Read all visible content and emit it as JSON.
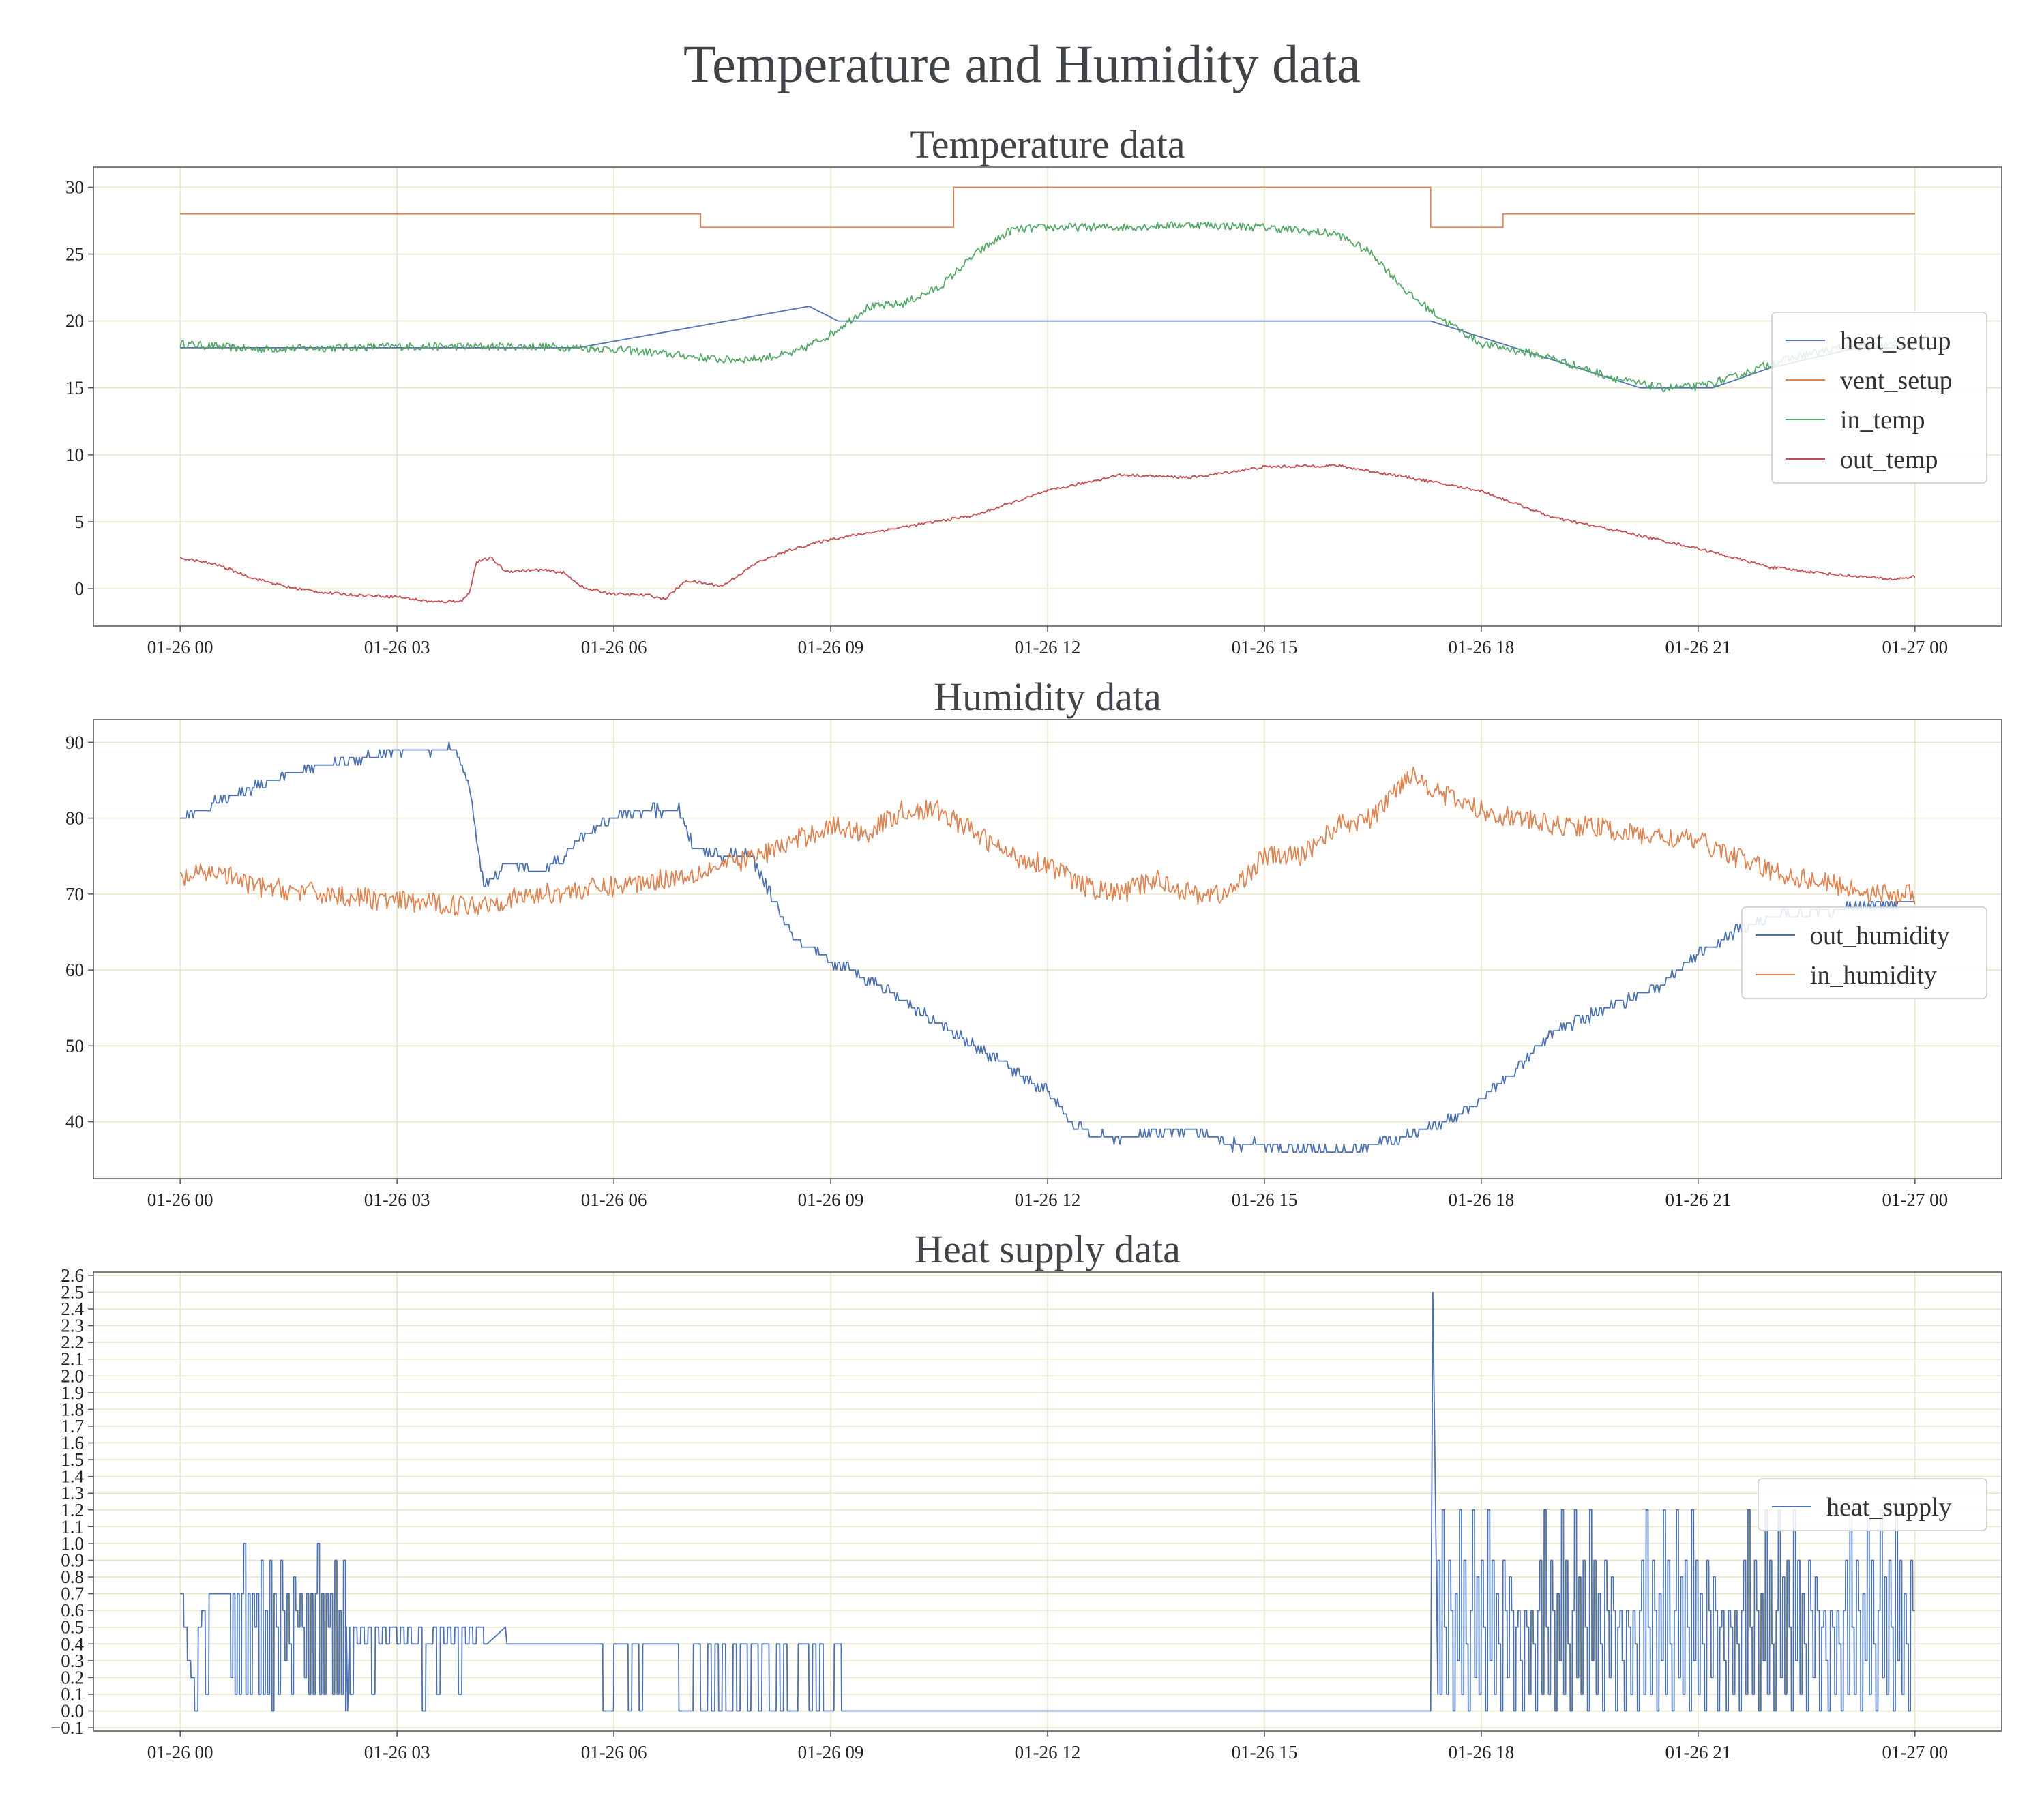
{
  "suptitle": "Temperature and Humidity data",
  "colors": {
    "blue": "#4c72b0",
    "orange": "#dd8452",
    "green": "#55a868",
    "red": "#c44e52",
    "grid": "#e6e6c8",
    "axes": "#555555"
  },
  "chart_data": [
    {
      "type": "line",
      "title": "Temperature data",
      "xlabel": "",
      "ylabel": "",
      "x_ticks": [
        "01-26 00",
        "01-26 03",
        "01-26 06",
        "01-26 09",
        "01-26 12",
        "01-26 15",
        "01-26 18",
        "01-26 21",
        "01-27 00"
      ],
      "x_range_hours": [
        -1.2,
        25.2
      ],
      "ylim": [
        -2.8,
        31.5
      ],
      "y_ticks": [
        0,
        5,
        10,
        15,
        20,
        25,
        30
      ],
      "grid": true,
      "legend": "center-right",
      "series": [
        {
          "name": "heat_setup",
          "color": "#4c72b0",
          "points": [
            [
              0,
              18
            ],
            [
              5.5,
              18
            ],
            [
              8.7,
              21.1
            ],
            [
              9.1,
              20
            ],
            [
              17.3,
              20
            ],
            [
              20.2,
              15
            ],
            [
              21.2,
              15
            ],
            [
              22,
              16.5
            ],
            [
              23.2,
              18
            ],
            [
              24,
              18
            ]
          ]
        },
        {
          "name": "vent_setup",
          "color": "#dd8452",
          "points": [
            [
              0,
              28
            ],
            [
              7.2,
              28
            ],
            [
              7.2,
              27
            ],
            [
              10.7,
              27
            ],
            [
              10.7,
              30
            ],
            [
              17.3,
              30
            ],
            [
              17.3,
              27
            ],
            [
              18.3,
              27
            ],
            [
              18.3,
              28
            ],
            [
              24,
              28
            ]
          ]
        },
        {
          "name": "in_temp",
          "color": "#55a868",
          "noise": 0.3,
          "points": [
            [
              0,
              18.3
            ],
            [
              1,
              17.9
            ],
            [
              2,
              18
            ],
            [
              3,
              18.1
            ],
            [
              4,
              18.1
            ],
            [
              5,
              18.1
            ],
            [
              6,
              17.9
            ],
            [
              7,
              17.4
            ],
            [
              7.5,
              17.1
            ],
            [
              8,
              17.2
            ],
            [
              8.5,
              17.6
            ],
            [
              9,
              19
            ],
            [
              9.5,
              21
            ],
            [
              10,
              21.3
            ],
            [
              10.5,
              22.5
            ],
            [
              11,
              25
            ],
            [
              11.5,
              26.8
            ],
            [
              12,
              27
            ],
            [
              13,
              27
            ],
            [
              14,
              27.2
            ],
            [
              15,
              27
            ],
            [
              16,
              26.5
            ],
            [
              16.5,
              25
            ],
            [
              17,
              22
            ],
            [
              17.5,
              20
            ],
            [
              18,
              18.3
            ],
            [
              18.5,
              17.8
            ],
            [
              19,
              17.2
            ],
            [
              19.5,
              16.3
            ],
            [
              20,
              15.5
            ],
            [
              20.5,
              15
            ],
            [
              21,
              15.1
            ],
            [
              21.5,
              15.8
            ],
            [
              22,
              16.8
            ],
            [
              22.5,
              17.5
            ],
            [
              23,
              18
            ],
            [
              24,
              18.3
            ]
          ]
        },
        {
          "name": "out_temp",
          "color": "#c44e52",
          "noise": 0.1,
          "points": [
            [
              0,
              2.3
            ],
            [
              0.5,
              1.8
            ],
            [
              1,
              0.8
            ],
            [
              1.5,
              0.1
            ],
            [
              2,
              -0.3
            ],
            [
              2.5,
              -0.5
            ],
            [
              3,
              -0.6
            ],
            [
              3.5,
              -1
            ],
            [
              3.9,
              -0.9
            ],
            [
              4,
              -0.3
            ],
            [
              4.1,
              2
            ],
            [
              4.3,
              2.3
            ],
            [
              4.5,
              1.3
            ],
            [
              5,
              1.4
            ],
            [
              5.3,
              1.2
            ],
            [
              5.6,
              0
            ],
            [
              6,
              -0.4
            ],
            [
              6.5,
              -0.5
            ],
            [
              6.7,
              -0.8
            ],
            [
              7,
              0.6
            ],
            [
              7.5,
              0.2
            ],
            [
              8,
              2
            ],
            [
              8.5,
              3
            ],
            [
              9,
              3.7
            ],
            [
              10,
              4.6
            ],
            [
              11,
              5.5
            ],
            [
              12,
              7.3
            ],
            [
              13,
              8.5
            ],
            [
              14,
              8.3
            ],
            [
              15,
              9.1
            ],
            [
              16,
              9.2
            ],
            [
              17,
              8.3
            ],
            [
              18,
              7.3
            ],
            [
              19,
              5.3
            ],
            [
              20,
              4.2
            ],
            [
              21,
              3
            ],
            [
              22,
              1.6
            ],
            [
              23,
              1
            ],
            [
              23.7,
              0.7
            ],
            [
              24,
              0.9
            ]
          ]
        }
      ]
    },
    {
      "type": "line",
      "title": "Humidity data",
      "xlabel": "",
      "ylabel": "",
      "x_ticks": [
        "01-26 00",
        "01-26 03",
        "01-26 06",
        "01-26 09",
        "01-26 12",
        "01-26 15",
        "01-26 18",
        "01-26 21",
        "01-27 00"
      ],
      "x_range_hours": [
        -1.2,
        25.2
      ],
      "ylim": [
        32.5,
        93
      ],
      "y_ticks": [
        40,
        50,
        60,
        70,
        80,
        90
      ],
      "grid": true,
      "legend": "center-right",
      "series": [
        {
          "name": "out_humidity",
          "color": "#4c72b0",
          "step": 1,
          "noise": 0.6,
          "points": [
            [
              0,
              80
            ],
            [
              0.5,
              82
            ],
            [
              1,
              84
            ],
            [
              1.5,
              86
            ],
            [
              2,
              87
            ],
            [
              2.5,
              88
            ],
            [
              3,
              89
            ],
            [
              3.5,
              88.5
            ],
            [
              3.8,
              89.5
            ],
            [
              4,
              84
            ],
            [
              4.2,
              71
            ],
            [
              4.5,
              74
            ],
            [
              5,
              73
            ],
            [
              5.3,
              75
            ],
            [
              5.6,
              78
            ],
            [
              6,
              80
            ],
            [
              6.5,
              81
            ],
            [
              6.9,
              81
            ],
            [
              7.1,
              76
            ],
            [
              7.5,
              75
            ],
            [
              7.9,
              75
            ],
            [
              8,
              73
            ],
            [
              8.5,
              64
            ],
            [
              9,
              61
            ],
            [
              9.5,
              59
            ],
            [
              10,
              56
            ],
            [
              10.5,
              53
            ],
            [
              11,
              50
            ],
            [
              11.5,
              47
            ],
            [
              12,
              44
            ],
            [
              12.3,
              40
            ],
            [
              12.7,
              38
            ],
            [
              13,
              38
            ],
            [
              13.5,
              38.5
            ],
            [
              14,
              39
            ],
            [
              14.5,
              37
            ],
            [
              15,
              37
            ],
            [
              15.5,
              36.5
            ],
            [
              16,
              36
            ],
            [
              16.5,
              37
            ],
            [
              17,
              38
            ],
            [
              17.5,
              40
            ],
            [
              18,
              43
            ],
            [
              18.5,
              47
            ],
            [
              19,
              52
            ],
            [
              19.5,
              54
            ],
            [
              20,
              56
            ],
            [
              20.5,
              58
            ],
            [
              21,
              62
            ],
            [
              21.5,
              65
            ],
            [
              22,
              67
            ],
            [
              23,
              68
            ],
            [
              23.8,
              69
            ],
            [
              24,
              69
            ]
          ]
        },
        {
          "name": "in_humidity",
          "color": "#dd8452",
          "noise": 1.4,
          "points": [
            [
              0,
              72
            ],
            [
              0.5,
              73
            ],
            [
              1,
              71
            ],
            [
              2,
              70
            ],
            [
              3,
              69
            ],
            [
              4,
              68.5
            ],
            [
              5,
              70
            ],
            [
              6,
              71
            ],
            [
              7,
              72.5
            ],
            [
              8,
              75
            ],
            [
              9,
              79
            ],
            [
              9.5,
              78
            ],
            [
              10,
              81
            ],
            [
              10.5,
              81
            ],
            [
              11,
              78
            ],
            [
              11.5,
              75
            ],
            [
              12,
              74
            ],
            [
              12.5,
              71
            ],
            [
              13,
              70
            ],
            [
              13.5,
              72
            ],
            [
              14,
              70
            ],
            [
              14.5,
              70
            ],
            [
              15,
              75
            ],
            [
              15.5,
              75
            ],
            [
              16,
              79
            ],
            [
              16.5,
              80
            ],
            [
              17,
              86
            ],
            [
              17.5,
              83
            ],
            [
              18,
              81
            ],
            [
              18.5,
              80
            ],
            [
              19,
              79
            ],
            [
              19.5,
              79
            ],
            [
              20,
              78
            ],
            [
              21,
              77
            ],
            [
              22,
              73
            ],
            [
              23,
              71
            ],
            [
              23.5,
              70
            ],
            [
              24,
              70
            ]
          ]
        }
      ]
    },
    {
      "type": "line",
      "title": "Heat supply data",
      "xlabel": "",
      "ylabel": "",
      "x_ticks": [
        "01-26 00",
        "01-26 03",
        "01-26 06",
        "01-26 09",
        "01-26 12",
        "01-26 15",
        "01-26 18",
        "01-26 21",
        "01-27 00"
      ],
      "x_range_hours": [
        -1.2,
        25.2
      ],
      "ylim": [
        -0.12,
        2.62
      ],
      "y_ticks": [
        -0.1,
        0.0,
        0.1,
        0.2,
        0.3,
        0.4,
        0.5,
        0.6,
        0.7,
        0.8,
        0.9,
        1.0,
        1.1,
        1.2,
        1.3,
        1.4,
        1.5,
        1.6,
        1.7,
        1.8,
        1.9,
        2.0,
        2.1,
        2.2,
        2.3,
        2.4,
        2.5,
        2.6
      ],
      "y_tick_labels": [
        "−0.1",
        "0.0",
        "0.1",
        "0.2",
        "0.3",
        "0.4",
        "0.5",
        "0.6",
        "0.7",
        "0.8",
        "0.9",
        "1.0",
        "1.1",
        "1.2",
        "1.3",
        "1.4",
        "1.5",
        "1.6",
        "1.7",
        "1.8",
        "1.9",
        "2.0",
        "2.1",
        "2.2",
        "2.3",
        "2.4",
        "2.5",
        "2.6"
      ],
      "grid": true,
      "legend": "center-right",
      "series": [
        {
          "name": "heat_supply",
          "color": "#4c72b0",
          "segments": [
            {
              "from": 0.0,
              "to": 0.7,
              "dt": 0.05,
              "levels": [
                0.7,
                0.5,
                0.3,
                0.2,
                0.0,
                0.5,
                0.6,
                0.1,
                0.7,
                0.7,
                0.7,
                0.7,
                0.7,
                0.7
              ]
            },
            {
              "from": 0.7,
              "to": 2.3,
              "dt": 0.03,
              "levels": [
                0.2,
                0.7,
                0.1,
                0.7,
                0.1,
                0.7,
                1.0,
                0.1,
                0.7,
                0.1,
                0.7,
                0.5,
                0.7,
                0.1,
                0.9,
                0.1,
                0.6,
                0.1,
                0.9,
                0.0,
                0.7,
                0.5,
                0.1,
                0.9,
                0.6,
                0.3,
                0.7,
                0.4,
                0.1,
                0.8,
                0.6,
                0.5,
                0.7,
                0.5
              ]
            },
            {
              "from": 2.3,
              "to": 4.2,
              "dt": 0.05,
              "levels": [
                0.5,
                0.1,
                0.5,
                0.4,
                0.5,
                0.4,
                0.5,
                0.1,
                0.5,
                0.4,
                0.5,
                0.4,
                0.5,
                0.5,
                0.4,
                0.5,
                0.4,
                0.5,
                0.4,
                0.4,
                0.5,
                0.0,
                0.4,
                0.4
              ]
            },
            {
              "from": 4.2,
              "to": 5.8,
              "value": 0.4,
              "spikes": [
                [
                  4.5,
                  0.5
                ]
              ]
            },
            {
              "from": 5.8,
              "to": 9.2,
              "dt": 0.05,
              "levels": [
                0.4,
                0.0
              ],
              "pattern": "alternate"
            },
            {
              "from": 9.2,
              "to": 9.3,
              "value": 0.0
            },
            {
              "from": 9.3,
              "to": 17.3,
              "value": 0.0
            },
            {
              "from": 17.3,
              "to": 17.4,
              "spike": 2.5
            },
            {
              "from": 17.4,
              "to": 24.0,
              "dt": 0.03,
              "levels": [
                0.9,
                0.1,
                1.2,
                0.5,
                0.1,
                0.9,
                0.6,
                0.0,
                0.7,
                0.3,
                1.2,
                0.1,
                0.9,
                0.4,
                0.0,
                0.6,
                1.2,
                0.2,
                0.8,
                0.1,
                0.9,
                0.5,
                0.0,
                1.2,
                0.3,
                0.9,
                0.1,
                0.7,
                0.4,
                0.0,
                0.9,
                0.6,
                0.2,
                0.8,
                0.6,
                0.0,
                0.5,
                0.6,
                0.3,
                0.0,
                0.6,
                0.5,
                0.1,
                0.6,
                0.4,
                0.0,
                0.6
              ]
            }
          ]
        }
      ]
    }
  ]
}
